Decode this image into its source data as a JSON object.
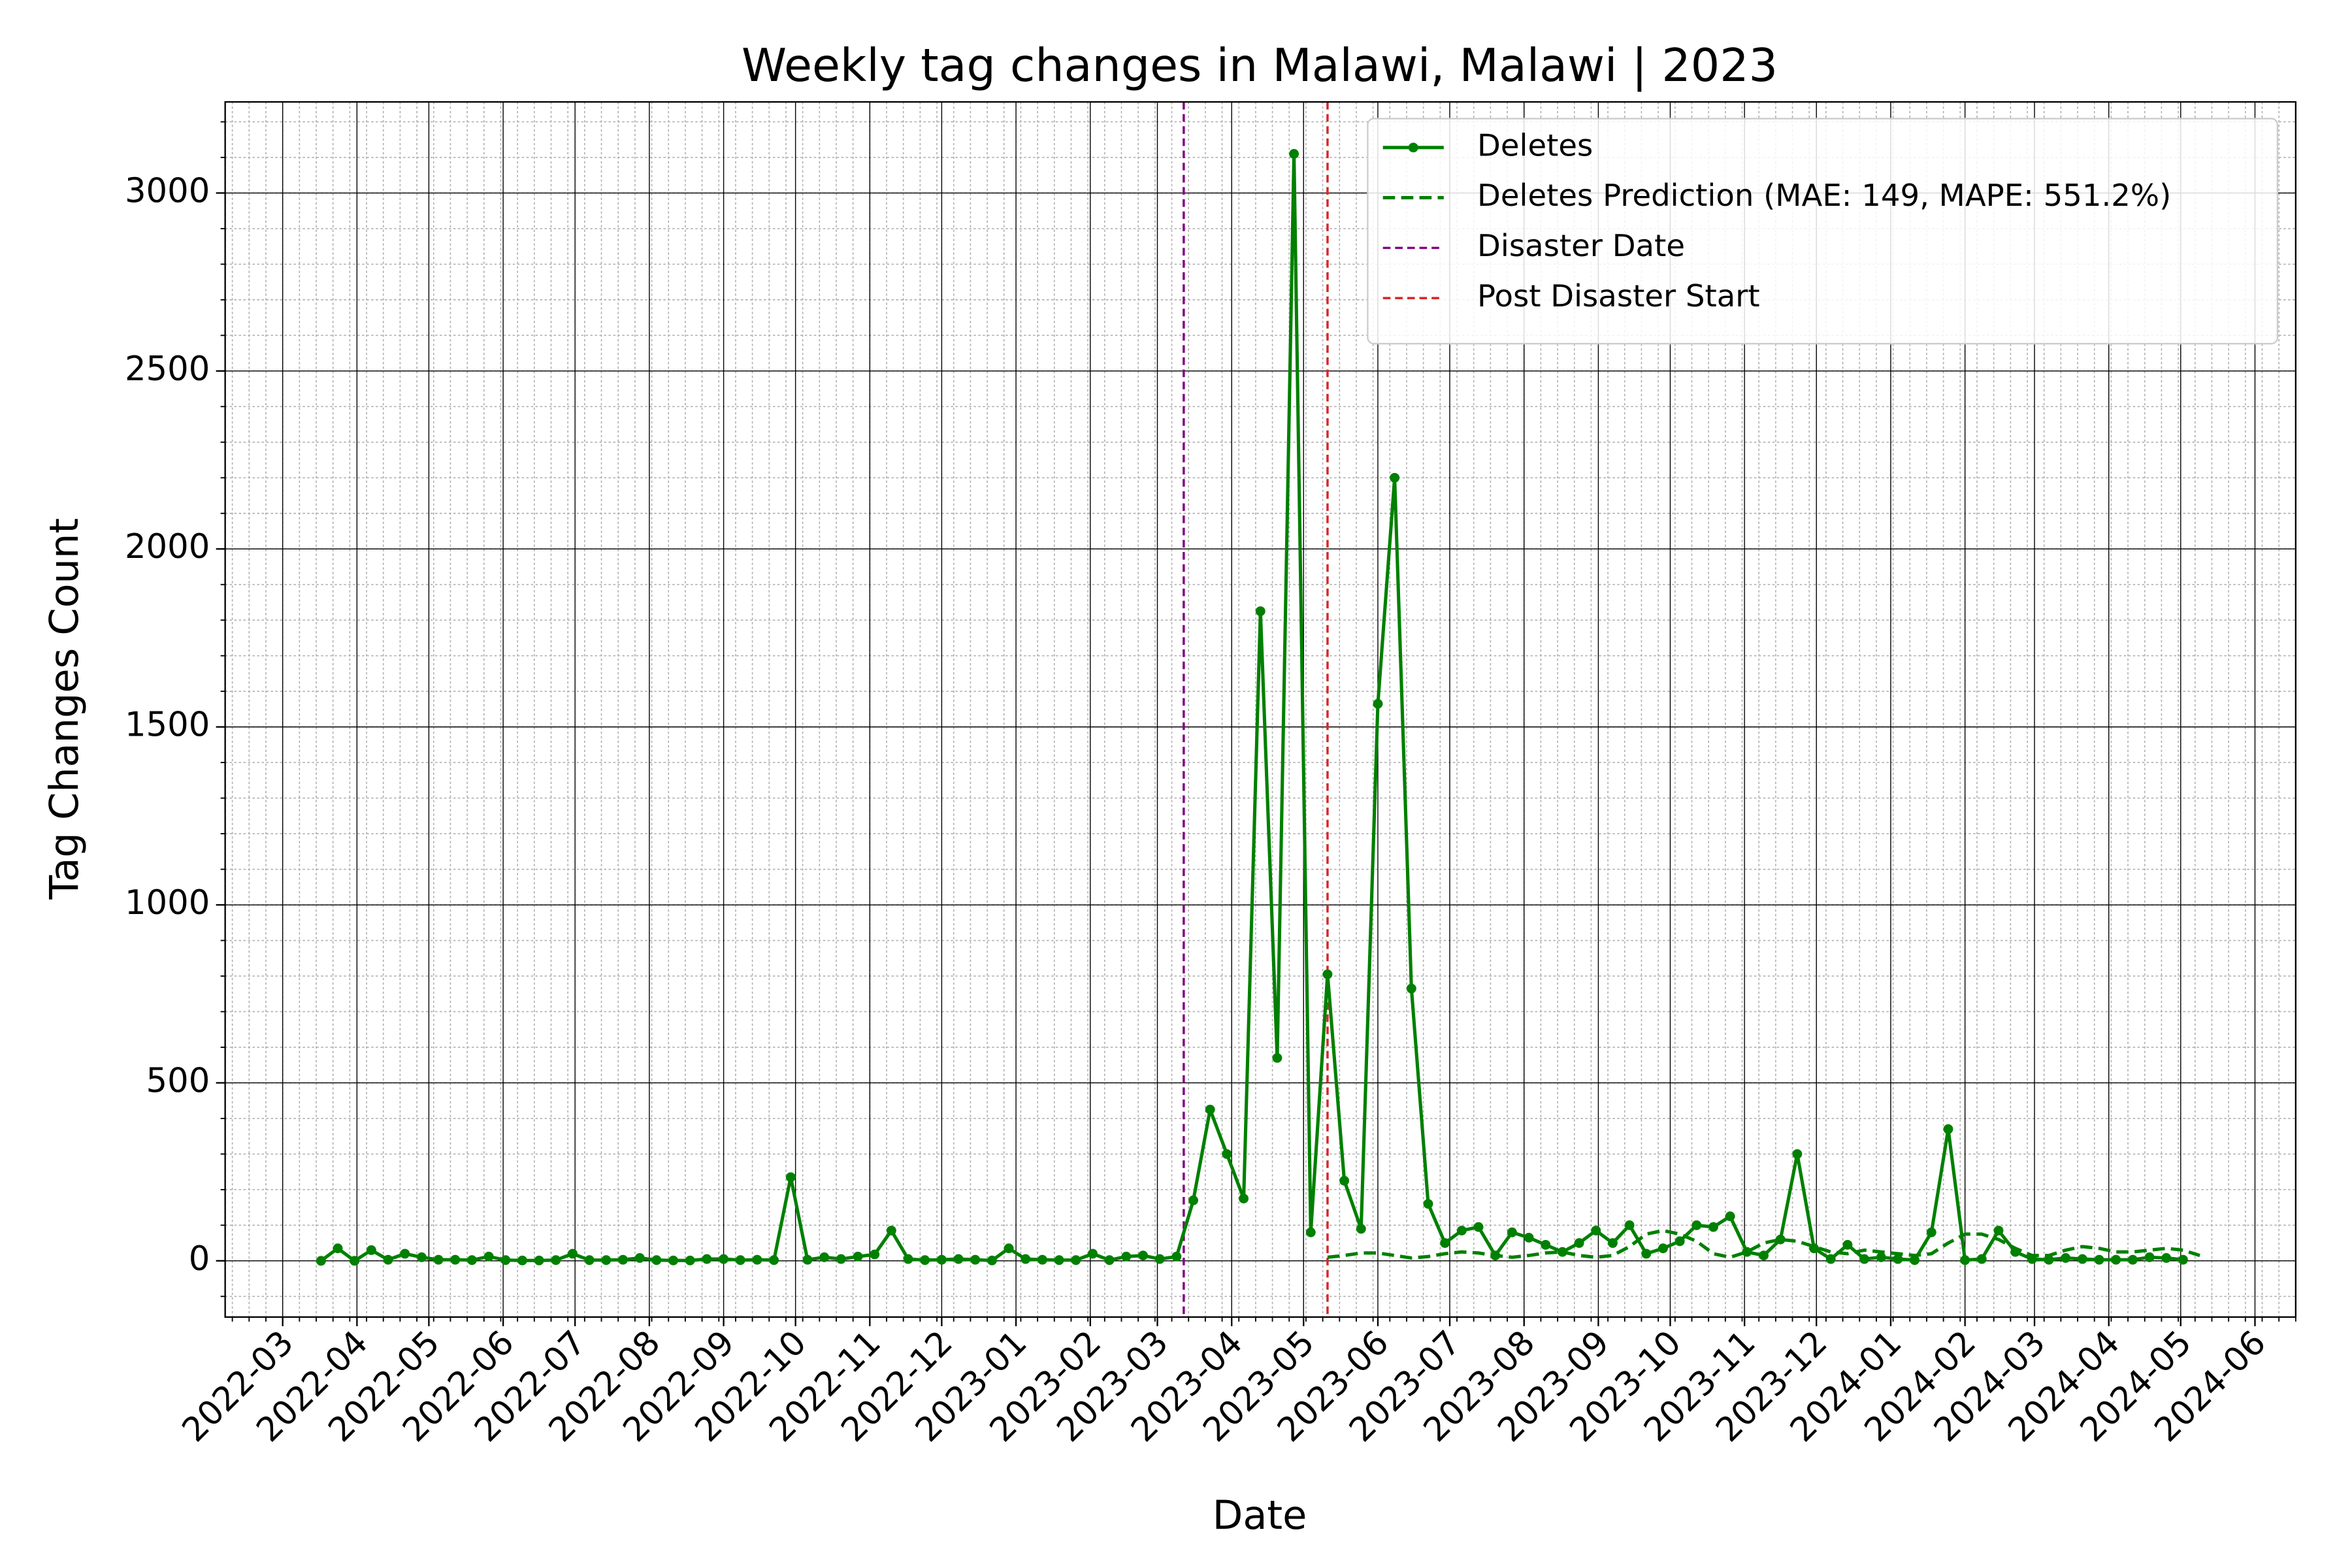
{
  "chart_data": {
    "type": "line",
    "title": "Weekly tag changes in Malawi, Malawi | 2023",
    "x_label": "Date",
    "y_label": "Tag Changes Count",
    "x": [
      "2022-03-17",
      "2022-03-24",
      "2022-03-31",
      "2022-04-07",
      "2022-04-14",
      "2022-04-21",
      "2022-04-28",
      "2022-05-05",
      "2022-05-12",
      "2022-05-19",
      "2022-05-26",
      "2022-06-02",
      "2022-06-09",
      "2022-06-16",
      "2022-06-23",
      "2022-06-30",
      "2022-07-07",
      "2022-07-14",
      "2022-07-21",
      "2022-07-28",
      "2022-08-04",
      "2022-08-11",
      "2022-08-18",
      "2022-08-25",
      "2022-09-01",
      "2022-09-08",
      "2022-09-15",
      "2022-09-22",
      "2022-09-29",
      "2022-10-06",
      "2022-10-13",
      "2022-10-20",
      "2022-10-27",
      "2022-11-03",
      "2022-11-10",
      "2022-11-17",
      "2022-11-24",
      "2022-12-01",
      "2022-12-08",
      "2022-12-15",
      "2022-12-22",
      "2022-12-29",
      "2023-01-05",
      "2023-01-12",
      "2023-01-19",
      "2023-01-26",
      "2023-02-02",
      "2023-02-09",
      "2023-02-16",
      "2023-02-23",
      "2023-03-02",
      "2023-03-09",
      "2023-03-16",
      "2023-03-23",
      "2023-03-30",
      "2023-04-06",
      "2023-04-13",
      "2023-04-20",
      "2023-04-27",
      "2023-05-04",
      "2023-05-11",
      "2023-05-18",
      "2023-05-25",
      "2023-06-01",
      "2023-06-08",
      "2023-06-15",
      "2023-06-22",
      "2023-06-29",
      "2023-07-06",
      "2023-07-13",
      "2023-07-20",
      "2023-07-27",
      "2023-08-03",
      "2023-08-10",
      "2023-08-17",
      "2023-08-24",
      "2023-08-31",
      "2023-09-07",
      "2023-09-14",
      "2023-09-21",
      "2023-09-28",
      "2023-10-05",
      "2023-10-12",
      "2023-10-19",
      "2023-10-26",
      "2023-11-02",
      "2023-11-09",
      "2023-11-16",
      "2023-11-23",
      "2023-11-30",
      "2023-12-07",
      "2023-12-14",
      "2023-12-21",
      "2023-12-28",
      "2024-01-04",
      "2024-01-11",
      "2024-01-18",
      "2024-01-25",
      "2024-02-01",
      "2024-02-08",
      "2024-02-15",
      "2024-02-22",
      "2024-02-29",
      "2024-03-07",
      "2024-03-14",
      "2024-03-21",
      "2024-03-28",
      "2024-04-04",
      "2024-04-11",
      "2024-04-18",
      "2024-04-25",
      "2024-05-02",
      "2024-05-09"
    ],
    "series": [
      {
        "name": "Deletes",
        "color": "#008000",
        "style": "solid",
        "marker": true,
        "values": [
          0,
          35,
          0,
          30,
          3,
          20,
          10,
          3,
          3,
          2,
          12,
          2,
          1,
          1,
          2,
          20,
          2,
          2,
          3,
          8,
          2,
          1,
          1,
          5,
          5,
          2,
          3,
          2,
          235,
          3,
          10,
          5,
          12,
          18,
          85,
          5,
          2,
          3,
          5,
          3,
          1,
          35,
          5,
          3,
          2,
          2,
          20,
          2,
          12,
          15,
          5,
          12,
          170,
          425,
          300,
          175,
          1825,
          570,
          3110,
          80,
          805,
          225,
          90,
          1565,
          2200,
          765,
          160,
          50,
          85,
          95,
          15,
          80,
          65,
          45,
          25,
          50,
          85,
          50,
          100,
          20,
          35,
          55,
          100,
          95,
          125,
          25,
          15,
          60,
          300,
          35,
          5,
          45,
          5,
          10,
          5,
          2,
          80,
          370,
          2,
          5,
          85,
          25,
          5,
          3,
          8,
          5,
          3,
          3,
          3,
          10,
          8,
          3,
          null
        ]
      },
      {
        "name": "Deletes Prediction (MAE: 149, MAPE: 551.2%)",
        "color": "#008000",
        "style": "dashed",
        "marker": false,
        "values": [
          null,
          null,
          null,
          null,
          null,
          null,
          null,
          null,
          null,
          null,
          null,
          null,
          null,
          null,
          null,
          null,
          null,
          null,
          null,
          null,
          null,
          null,
          null,
          null,
          null,
          null,
          null,
          null,
          null,
          null,
          null,
          null,
          null,
          null,
          null,
          null,
          null,
          null,
          null,
          null,
          null,
          null,
          null,
          null,
          null,
          null,
          null,
          null,
          null,
          null,
          null,
          null,
          null,
          null,
          null,
          null,
          null,
          null,
          null,
          null,
          10,
          15,
          22,
          22,
          15,
          8,
          12,
          20,
          25,
          22,
          15,
          10,
          15,
          22,
          25,
          15,
          10,
          15,
          40,
          75,
          85,
          75,
          55,
          20,
          10,
          25,
          50,
          60,
          55,
          40,
          25,
          20,
          30,
          25,
          20,
          15,
          20,
          50,
          75,
          75,
          60,
          35,
          15,
          15,
          30,
          40,
          35,
          25,
          25,
          30,
          35,
          30,
          15
        ]
      }
    ],
    "vlines": [
      {
        "name": "Disaster Date",
        "x": "2023-03-12",
        "color": "#800080"
      },
      {
        "name": "Post Disaster Start",
        "x": "2023-05-11",
        "color": "#d62728"
      }
    ],
    "xlim": [
      "2022-02-05",
      "2024-06-18"
    ],
    "xticks": [
      {
        "value": "2022-03-01",
        "label": "2022-03"
      },
      {
        "value": "2022-04-01",
        "label": "2022-04"
      },
      {
        "value": "2022-05-01",
        "label": "2022-05"
      },
      {
        "value": "2022-06-01",
        "label": "2022-06"
      },
      {
        "value": "2022-07-01",
        "label": "2022-07"
      },
      {
        "value": "2022-08-01",
        "label": "2022-08"
      },
      {
        "value": "2022-09-01",
        "label": "2022-09"
      },
      {
        "value": "2022-10-01",
        "label": "2022-10"
      },
      {
        "value": "2022-11-01",
        "label": "2022-11"
      },
      {
        "value": "2022-12-01",
        "label": "2022-12"
      },
      {
        "value": "2023-01-01",
        "label": "2023-01"
      },
      {
        "value": "2023-02-01",
        "label": "2023-02"
      },
      {
        "value": "2023-03-01",
        "label": "2023-03"
      },
      {
        "value": "2023-04-01",
        "label": "2023-04"
      },
      {
        "value": "2023-05-01",
        "label": "2023-05"
      },
      {
        "value": "2023-06-01",
        "label": "2023-06"
      },
      {
        "value": "2023-07-01",
        "label": "2023-07"
      },
      {
        "value": "2023-08-01",
        "label": "2023-08"
      },
      {
        "value": "2023-09-01",
        "label": "2023-09"
      },
      {
        "value": "2023-10-01",
        "label": "2023-10"
      },
      {
        "value": "2023-11-01",
        "label": "2023-11"
      },
      {
        "value": "2023-12-01",
        "label": "2023-12"
      },
      {
        "value": "2024-01-01",
        "label": "2024-01"
      },
      {
        "value": "2024-02-01",
        "label": "2024-02"
      },
      {
        "value": "2024-03-01",
        "label": "2024-03"
      },
      {
        "value": "2024-04-01",
        "label": "2024-04"
      },
      {
        "value": "2024-05-01",
        "label": "2024-05"
      },
      {
        "value": "2024-06-01",
        "label": "2024-06"
      }
    ],
    "x_minor_step_days": 7,
    "ylim": [
      -158,
      3256
    ],
    "yticks": [
      0,
      500,
      1000,
      1500,
      2000,
      2500,
      3000
    ],
    "y_minor_step": 100,
    "grid": true,
    "legend": "upper right"
  }
}
